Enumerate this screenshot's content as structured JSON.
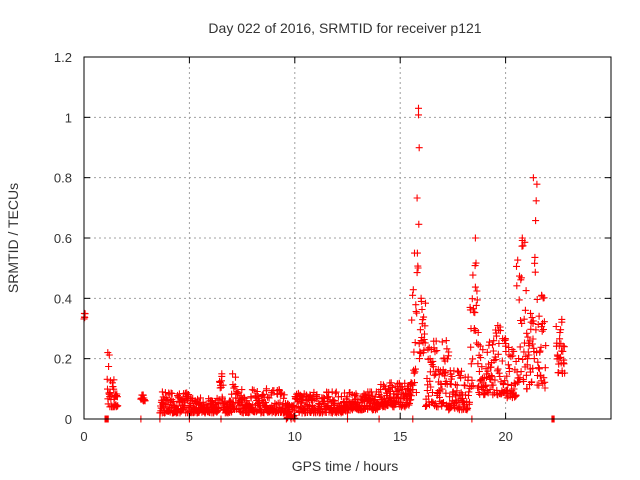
{
  "chart_data": {
    "type": "scatter",
    "title": "Day 022 of 2016, SRMTID for receiver p121",
    "xlabel": "GPS time / hours",
    "ylabel": "SRMTID / TECUs",
    "xlim": [
      0,
      25
    ],
    "ylim": [
      0,
      1.2
    ],
    "xticks": [
      0,
      5,
      10,
      15,
      20
    ],
    "xtick_labels": [
      "0",
      "5",
      "10",
      "15",
      "20"
    ],
    "yticks": [
      0,
      0.2,
      0.4,
      0.6,
      0.8,
      1,
      1.2
    ],
    "ytick_labels": [
      "0",
      "0.2",
      "0.4",
      "0.6",
      "0.8",
      "1",
      "1.2"
    ],
    "grid": true,
    "marker": "+",
    "marker_color": "#ff0000",
    "series": [
      {
        "name": "SRMTID",
        "envelope": [
          {
            "x_start": 0.0,
            "x_end": 0.05,
            "y_min": 0.33,
            "y_max": 0.35
          },
          {
            "x_start": 1.0,
            "x_end": 1.15,
            "y_min": 0.0,
            "y_max": 0.0
          },
          {
            "x_start": 1.1,
            "x_end": 1.2,
            "y_min": 0.05,
            "y_max": 0.22
          },
          {
            "x_start": 1.2,
            "x_end": 1.6,
            "y_min": 0.04,
            "y_max": 0.13
          },
          {
            "x_start": 2.7,
            "x_end": 2.9,
            "y_min": 0.06,
            "y_max": 0.08
          },
          {
            "x_start": 3.6,
            "x_end": 5.0,
            "y_min": 0.02,
            "y_max": 0.09
          },
          {
            "x_start": 5.0,
            "x_end": 6.4,
            "y_min": 0.02,
            "y_max": 0.07
          },
          {
            "x_start": 6.4,
            "x_end": 6.6,
            "y_min": 0.05,
            "y_max": 0.15
          },
          {
            "x_start": 6.6,
            "x_end": 7.0,
            "y_min": 0.02,
            "y_max": 0.06
          },
          {
            "x_start": 7.0,
            "x_end": 7.2,
            "y_min": 0.03,
            "y_max": 0.15
          },
          {
            "x_start": 7.2,
            "x_end": 9.6,
            "y_min": 0.02,
            "y_max": 0.1
          },
          {
            "x_start": 9.6,
            "x_end": 10.0,
            "y_min": 0.0,
            "y_max": 0.05
          },
          {
            "x_start": 10.0,
            "x_end": 12.5,
            "y_min": 0.02,
            "y_max": 0.09
          },
          {
            "x_start": 12.5,
            "x_end": 14.0,
            "y_min": 0.03,
            "y_max": 0.09
          },
          {
            "x_start": 14.0,
            "x_end": 15.5,
            "y_min": 0.04,
            "y_max": 0.12
          },
          {
            "x_start": 15.5,
            "x_end": 15.8,
            "y_min": 0.06,
            "y_max": 0.55
          },
          {
            "x_start": 15.8,
            "x_end": 15.9,
            "y_min": 0.5,
            "y_max": 1.03
          },
          {
            "x_start": 15.9,
            "x_end": 16.2,
            "y_min": 0.2,
            "y_max": 0.4
          },
          {
            "x_start": 16.2,
            "x_end": 17.3,
            "y_min": 0.04,
            "y_max": 0.26
          },
          {
            "x_start": 17.3,
            "x_end": 18.3,
            "y_min": 0.03,
            "y_max": 0.16
          },
          {
            "x_start": 18.3,
            "x_end": 18.7,
            "y_min": 0.1,
            "y_max": 0.6
          },
          {
            "x_start": 18.7,
            "x_end": 20.0,
            "y_min": 0.08,
            "y_max": 0.31
          },
          {
            "x_start": 20.0,
            "x_end": 20.5,
            "y_min": 0.07,
            "y_max": 0.25
          },
          {
            "x_start": 20.5,
            "x_end": 21.0,
            "y_min": 0.12,
            "y_max": 0.6
          },
          {
            "x_start": 21.0,
            "x_end": 21.3,
            "y_min": 0.1,
            "y_max": 0.35
          },
          {
            "x_start": 21.3,
            "x_end": 21.5,
            "y_min": 0.2,
            "y_max": 0.8
          },
          {
            "x_start": 21.5,
            "x_end": 21.9,
            "y_min": 0.1,
            "y_max": 0.41
          },
          {
            "x_start": 22.2,
            "x_end": 22.3,
            "y_min": 0.0,
            "y_max": 0.0
          },
          {
            "x_start": 22.4,
            "x_end": 22.8,
            "y_min": 0.15,
            "y_max": 0.33
          }
        ],
        "zero_points_x": [
          1.0,
          1.1,
          2.7,
          3.6,
          5.0,
          6.5,
          9.6,
          10.0,
          12.5,
          14.0,
          15.6,
          18.4,
          22.2
        ]
      }
    ]
  }
}
